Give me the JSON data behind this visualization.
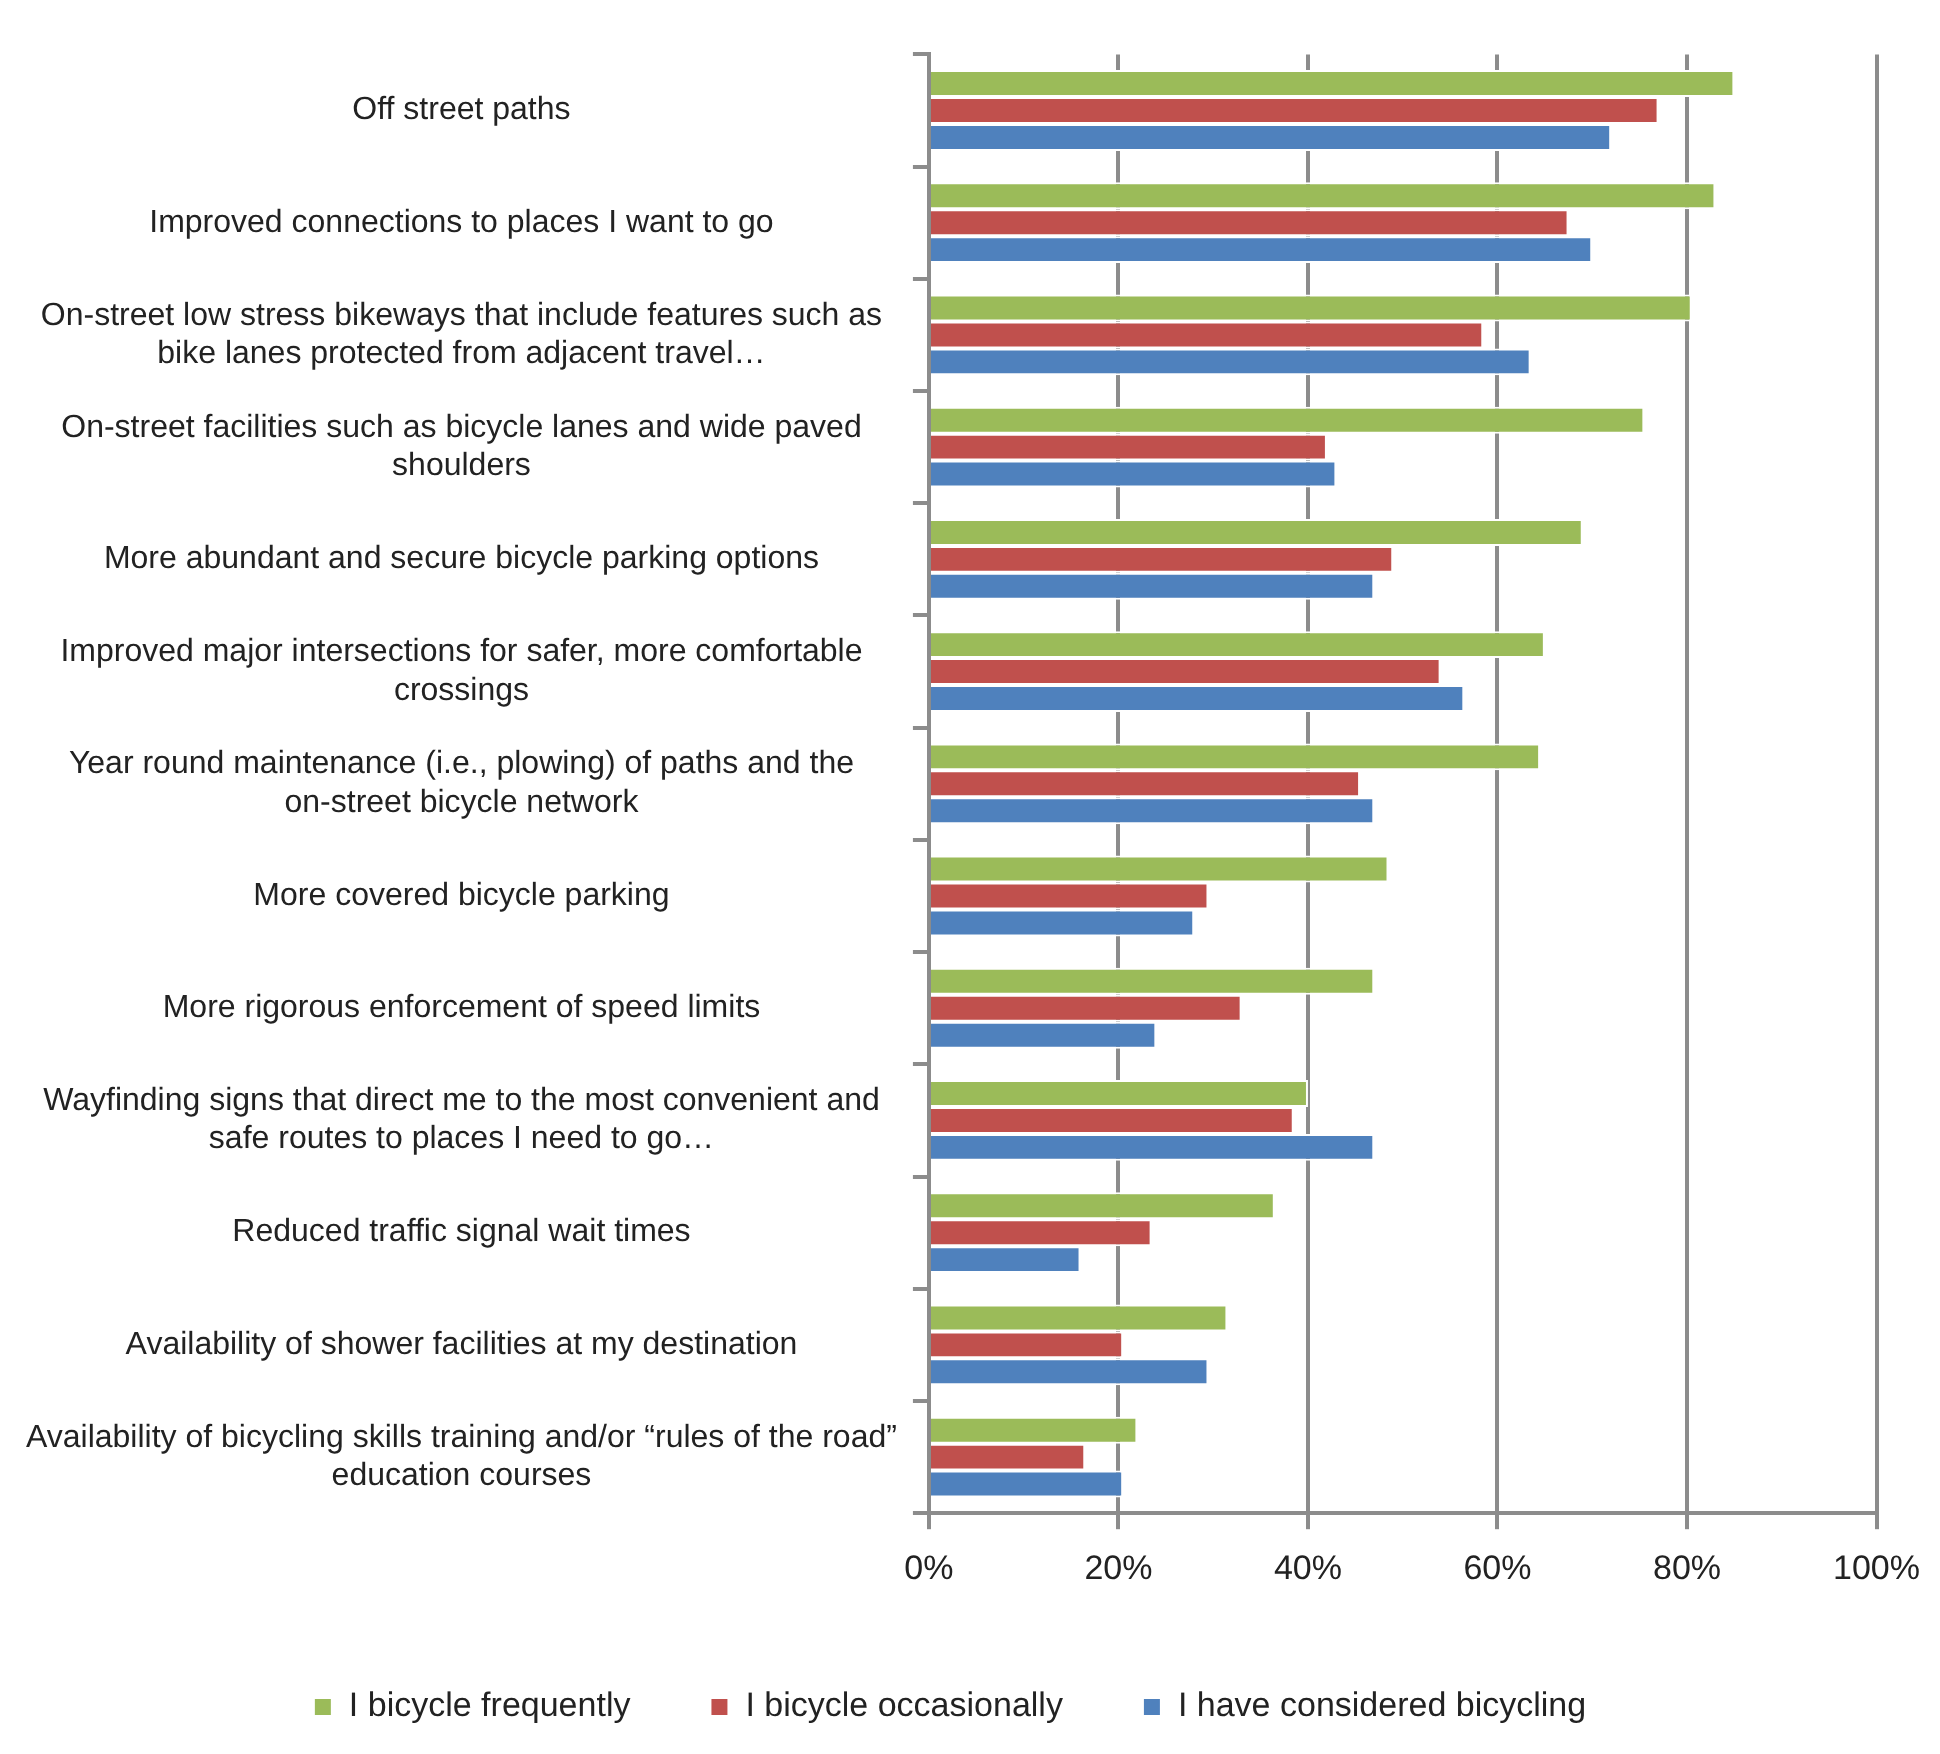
{
  "chart_data": {
    "type": "bar",
    "orientation": "horizontal",
    "categories": [
      "Off street paths",
      "Improved connections to places I want to go",
      "On-street low stress bikeways that include features such as bike lanes protected from adjacent travel…",
      "On-street facilities such as bicycle lanes and wide paved shoulders",
      "More abundant and secure bicycle parking options",
      "Improved major intersections for safer, more comfortable crossings",
      "Year round maintenance (i.e., plowing) of paths and the on-street bicycle network",
      "More covered bicycle parking",
      "More rigorous enforcement of speed limits",
      "Wayfinding signs that direct me to the most convenient and safe routes to places I need to go…",
      "Reduced traffic signal wait times",
      "Availability of shower facilities at my destination",
      "Availability of bicycling skills training and/or “rules of the road” education courses"
    ],
    "series": [
      {
        "name": "I bicycle frequently",
        "color": "#9bbb59",
        "values": [
          85,
          83,
          80.5,
          75.5,
          69,
          65,
          64.5,
          48.5,
          47,
          40,
          36.5,
          31.5,
          22
        ]
      },
      {
        "name": "I bicycle occasionally",
        "color": "#c0504d",
        "values": [
          77,
          67.5,
          58.5,
          42,
          49,
          54,
          45.5,
          29.5,
          33,
          38.5,
          23.5,
          20.5,
          16.5
        ]
      },
      {
        "name": "I have considered bicycling",
        "color": "#4f81bd",
        "values": [
          72,
          70,
          63.5,
          43,
          47,
          56.5,
          47,
          28,
          24,
          47,
          16,
          29.5,
          20.5
        ]
      }
    ],
    "xlim": [
      0,
      100
    ],
    "xticks": [
      {
        "value": 0,
        "label": "0%"
      },
      {
        "value": 20,
        "label": "20%"
      },
      {
        "value": 40,
        "label": "40%"
      },
      {
        "value": 60,
        "label": "60%"
      },
      {
        "value": 80,
        "label": "80%"
      },
      {
        "value": 100,
        "label": "100%"
      }
    ],
    "grid": "x",
    "legend": "bottom"
  }
}
